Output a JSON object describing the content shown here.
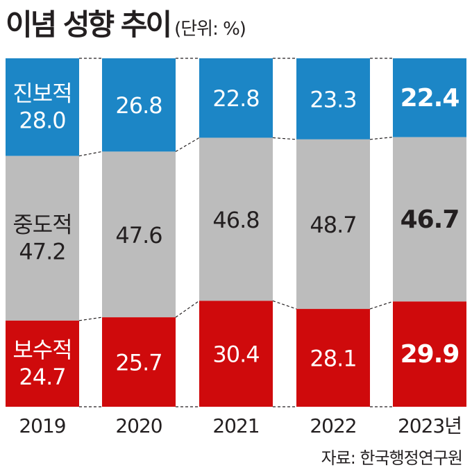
{
  "title": "이념 성향 추이",
  "unit": "(단위: %)",
  "source": "자료: 한국행정연구원",
  "colors": {
    "progressive": "#1c86c6",
    "moderate": "#bcbcbc",
    "conservative": "#cf0a0c",
    "connector": "#231f20"
  },
  "chart_data": {
    "type": "bar",
    "stacked": true,
    "categories": [
      "2019",
      "2020",
      "2021",
      "2022",
      "2023년"
    ],
    "series": [
      {
        "name": "진보적",
        "values": [
          28.0,
          26.8,
          22.8,
          23.3,
          22.4
        ]
      },
      {
        "name": "중도적",
        "values": [
          47.2,
          47.6,
          46.8,
          48.7,
          46.7
        ]
      },
      {
        "name": "보수적",
        "values": [
          24.7,
          25.7,
          30.4,
          28.1,
          29.9
        ]
      }
    ],
    "value_labels": [
      [
        "28.0",
        "26.8",
        "22.8",
        "23.3",
        "22.4"
      ],
      [
        "47.2",
        "47.6",
        "46.8",
        "48.7",
        "46.7"
      ],
      [
        "24.7",
        "25.7",
        "30.4",
        "28.1",
        "29.9"
      ]
    ],
    "ylim": [
      0,
      100
    ],
    "grid": false,
    "legend": "none"
  }
}
